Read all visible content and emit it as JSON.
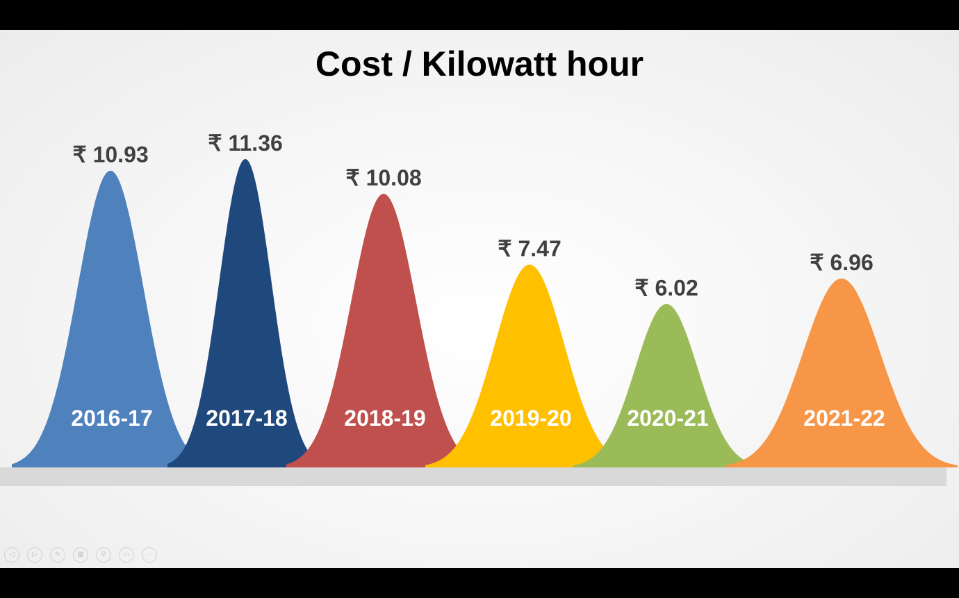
{
  "slide": {
    "title": "Cost / Kilowatt hour"
  },
  "chart_data": {
    "type": "area",
    "title": "Cost / Kilowatt hour",
    "categories": [
      "2016-17",
      "2017-18",
      "2018-19",
      "2019-20",
      "2020-21",
      "2021-22"
    ],
    "values": [
      10.93,
      11.36,
      10.08,
      7.47,
      6.02,
      6.96
    ],
    "value_labels": [
      "₹ 10.93",
      "₹ 11.36",
      "₹ 10.08",
      "₹ 7.47",
      "₹ 6.02",
      "₹ 6.96"
    ],
    "colors": [
      "#4F81BD",
      "#1F497D",
      "#C0504D",
      "#FFC000",
      "#9BBB59",
      "#F79646"
    ],
    "currency": "₹"
  },
  "controls": [
    {
      "name": "previous-slide-icon",
      "glyph": "◁"
    },
    {
      "name": "next-slide-icon",
      "glyph": "▷"
    },
    {
      "name": "pen-icon",
      "glyph": "✎"
    },
    {
      "name": "slides-grid-icon",
      "glyph": "▦"
    },
    {
      "name": "zoom-icon",
      "glyph": "⚲"
    },
    {
      "name": "subtitles-icon",
      "glyph": "▭"
    },
    {
      "name": "more-options-icon",
      "glyph": "⋯"
    }
  ]
}
